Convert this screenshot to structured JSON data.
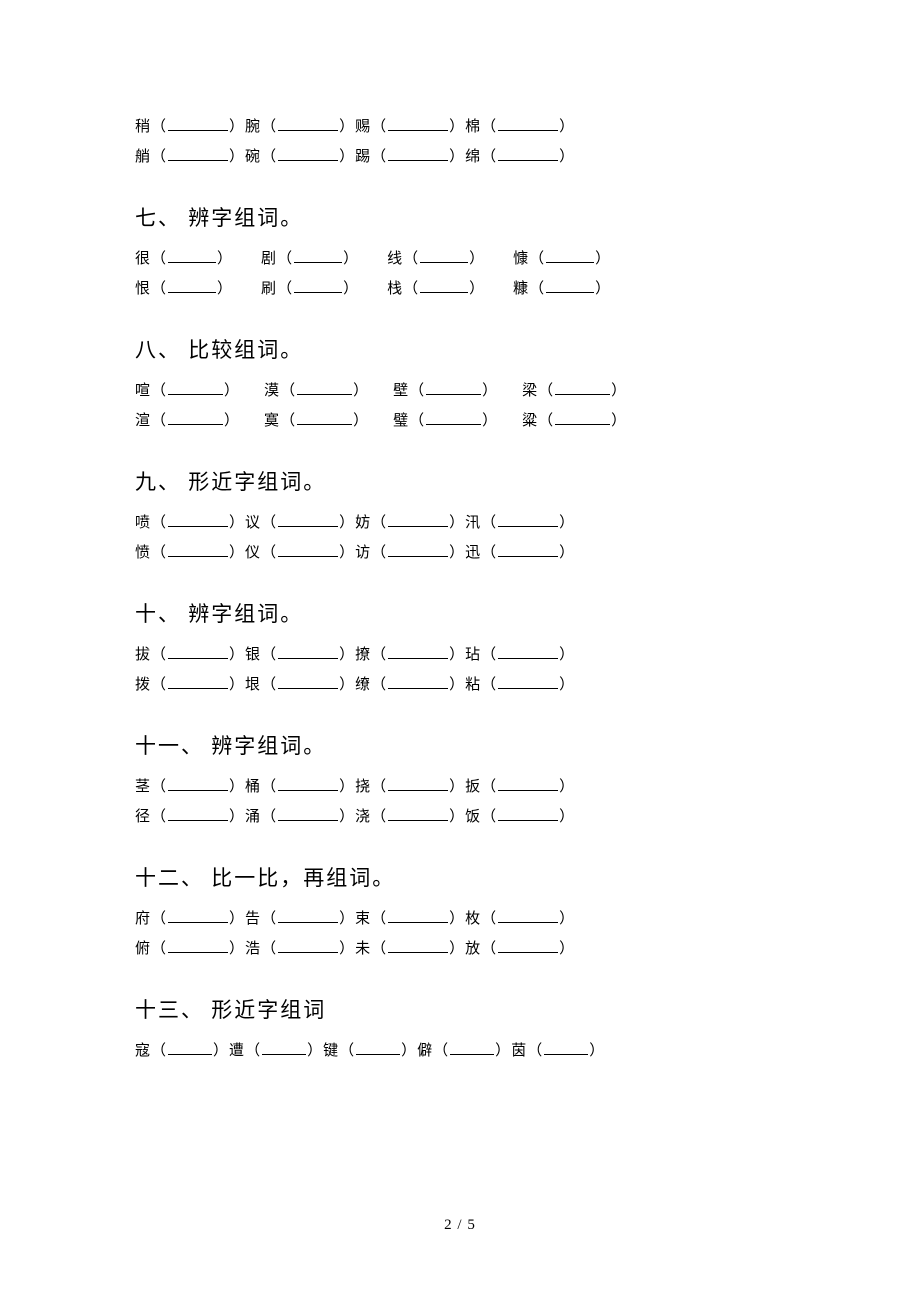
{
  "blank_widths": {
    "w55": 55,
    "w60": 60,
    "w48": 48,
    "w44": 44,
    "w40": 40
  },
  "gaps": {
    "g28": 28,
    "g24": 24,
    "g18": 18,
    "g16": 16
  },
  "top_rows": [
    {
      "items": [
        {
          "char": "稍",
          "bw": 60
        },
        {
          "char": "腕",
          "bw": 60
        },
        {
          "char": "赐",
          "bw": 60
        },
        {
          "char": "棉",
          "bw": 60
        }
      ],
      "gap": 0
    },
    {
      "items": [
        {
          "char": "艄",
          "bw": 60
        },
        {
          "char": "碗",
          "bw": 60
        },
        {
          "char": "踢",
          "bw": 60
        },
        {
          "char": "绵",
          "bw": 60
        }
      ],
      "gap": 0
    }
  ],
  "sections": [
    {
      "title": "七、 辨字组词。",
      "rows": [
        {
          "items": [
            {
              "char": "很",
              "bw": 48
            },
            {
              "char": "剧",
              "bw": 48
            },
            {
              "char": "线",
              "bw": 48
            },
            {
              "char": "慷",
              "bw": 48
            }
          ],
          "gap": 28
        },
        {
          "items": [
            {
              "char": "恨",
              "bw": 48
            },
            {
              "char": "刷",
              "bw": 48
            },
            {
              "char": "栈",
              "bw": 48
            },
            {
              "char": "糠",
              "bw": 48
            }
          ],
          "gap": 28
        }
      ]
    },
    {
      "title": "八、 比较组词。",
      "rows": [
        {
          "items": [
            {
              "char": "喧",
              "bw": 55
            },
            {
              "char": "漠",
              "bw": 55
            },
            {
              "char": "壁",
              "bw": 55
            },
            {
              "char": "梁",
              "bw": 55
            }
          ],
          "gap": 24
        },
        {
          "items": [
            {
              "char": "渲",
              "bw": 55
            },
            {
              "char": "寞",
              "bw": 55
            },
            {
              "char": "璧",
              "bw": 55
            },
            {
              "char": "粱",
              "bw": 55
            }
          ],
          "gap": 24
        }
      ]
    },
    {
      "title": "九、 形近字组词。",
      "rows": [
        {
          "items": [
            {
              "char": "喷",
              "bw": 60
            },
            {
              "char": "议",
              "bw": 60
            },
            {
              "char": "妨",
              "bw": 60
            },
            {
              "char": "汛",
              "bw": 60
            }
          ],
          "gap": 0
        },
        {
          "items": [
            {
              "char": "愤",
              "bw": 60
            },
            {
              "char": "仪",
              "bw": 60
            },
            {
              "char": "访",
              "bw": 60
            },
            {
              "char": "迅",
              "bw": 60
            }
          ],
          "gap": 0
        }
      ]
    },
    {
      "title": "十、 辨字组词。",
      "rows": [
        {
          "items": [
            {
              "char": "拔",
              "bw": 60
            },
            {
              "char": "银",
              "bw": 60
            },
            {
              "char": "撩",
              "bw": 60
            },
            {
              "char": "玷",
              "bw": 60
            }
          ],
          "gap": 0
        },
        {
          "items": [
            {
              "char": "拨",
              "bw": 60
            },
            {
              "char": "垠",
              "bw": 60
            },
            {
              "char": "缭",
              "bw": 60
            },
            {
              "char": "粘",
              "bw": 60
            }
          ],
          "gap": 0
        }
      ]
    },
    {
      "title": "十一、 辨字组词。",
      "rows": [
        {
          "items": [
            {
              "char": "茎",
              "bw": 60
            },
            {
              "char": "桶",
              "bw": 60
            },
            {
              "char": "挠",
              "bw": 60
            },
            {
              "char": "扳",
              "bw": 60
            }
          ],
          "gap": 0
        },
        {
          "items": [
            {
              "char": "径",
              "bw": 60
            },
            {
              "char": "涌",
              "bw": 60
            },
            {
              "char": "浇",
              "bw": 60
            },
            {
              "char": "饭",
              "bw": 60
            }
          ],
          "gap": 0
        }
      ]
    },
    {
      "title": "十二、 比一比，再组词。",
      "rows": [
        {
          "items": [
            {
              "char": "府",
              "bw": 60
            },
            {
              "char": "告",
              "bw": 60
            },
            {
              "char": "束",
              "bw": 60
            },
            {
              "char": "枚",
              "bw": 60
            }
          ],
          "gap": 0
        },
        {
          "items": [
            {
              "char": "俯",
              "bw": 60
            },
            {
              "char": "浩",
              "bw": 60
            },
            {
              "char": "未",
              "bw": 60
            },
            {
              "char": "放",
              "bw": 60
            }
          ],
          "gap": 0
        }
      ]
    },
    {
      "title": "十三、 形近字组词",
      "rows": [
        {
          "items": [
            {
              "char": "寇",
              "bw": 44
            },
            {
              "char": "遭",
              "bw": 44
            },
            {
              "char": "键",
              "bw": 44
            },
            {
              "char": "僻",
              "bw": 44
            },
            {
              "char": "茵",
              "bw": 44
            }
          ],
          "gap": 0
        }
      ]
    }
  ],
  "footer": "2 / 5"
}
